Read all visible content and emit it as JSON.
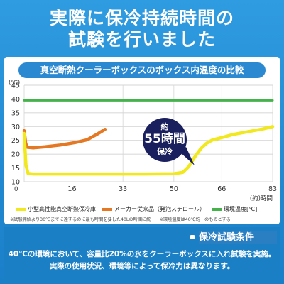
{
  "headline": [
    "実際に保冷持続時間の",
    "試験を行いました"
  ],
  "chart_data": {
    "type": "line",
    "title": "真空断熱クーラーボックスのボックス内温度の比較",
    "ylabel": "(℃)",
    "xlabel": "(約)時間",
    "ylim": [
      10,
      45
    ],
    "xlim": [
      0,
      83
    ],
    "yticks": [
      10,
      15,
      20,
      25,
      30,
      35,
      40,
      45
    ],
    "xticks": [
      16,
      33,
      50,
      66,
      83
    ],
    "x_start_label": "0",
    "grid": true,
    "series": [
      {
        "name": "小型高性能真空断熱保冷庫",
        "color": "#f2e81e",
        "points": [
          [
            0,
            27.5
          ],
          [
            0.6,
            16
          ],
          [
            1.3,
            13
          ],
          [
            3,
            12.8
          ],
          [
            20,
            12.8
          ],
          [
            40,
            12.8
          ],
          [
            50,
            12.9
          ],
          [
            53,
            13.4
          ],
          [
            55,
            15.5
          ],
          [
            57,
            19
          ],
          [
            59,
            22
          ],
          [
            61,
            24
          ],
          [
            63,
            25.2
          ],
          [
            66,
            26
          ],
          [
            70,
            27.2
          ],
          [
            75,
            28.2
          ],
          [
            80,
            29.2
          ],
          [
            83,
            30
          ]
        ]
      },
      {
        "name": "メーカー従来品（発泡スチロール）",
        "color": "#e57822",
        "points": [
          [
            0,
            28.5
          ],
          [
            0.5,
            24
          ],
          [
            1,
            22.5
          ],
          [
            3,
            22.3
          ],
          [
            7,
            22.7
          ],
          [
            12,
            23.3
          ],
          [
            17,
            24.2
          ],
          [
            21,
            25.2
          ],
          [
            24,
            27
          ],
          [
            27,
            29
          ]
        ]
      },
      {
        "name": "環境温度[℃]",
        "color": "#45b24b",
        "points": [
          [
            0,
            39.5
          ],
          [
            83,
            39.5
          ]
        ]
      }
    ],
    "annotation": {
      "line1": "約",
      "line2": "55時間",
      "line3": "保冷",
      "value_hours": 55
    }
  },
  "footnote": "※試験開始より30℃までに達するのに最も時間を要した40Lの時間に統一　※環境温度は40℃均一のものとする",
  "conditions": {
    "title": "保冷試験条件",
    "lines": [
      "40℃の環境において、容量比20%の氷をクーラーボックスに入れ試験を実施。",
      "実際の使用状況、環境等によって保冷力は異なります。"
    ]
  }
}
